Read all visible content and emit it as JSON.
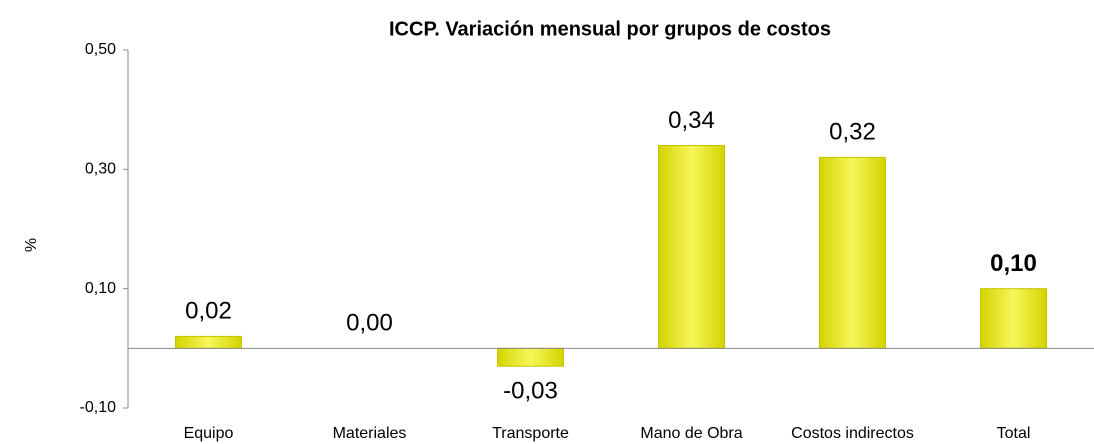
{
  "chart_data": {
    "type": "bar",
    "title": "ICCP. Variación mensual por grupos de costos",
    "y_label": "%",
    "categories": [
      "Equipo",
      "Materiales",
      "Transporte",
      "Mano de Obra",
      "Costos indirectos",
      "Total"
    ],
    "values": [
      0.02,
      0.0,
      -0.03,
      0.34,
      0.32,
      0.1
    ],
    "value_labels": [
      "0,02",
      "0,00",
      "-0,03",
      "0,34",
      "0,32",
      "0,10"
    ],
    "color": "#e8e800",
    "ylim": [
      -0.1,
      0.5
    ],
    "yticks": [
      {
        "value": -0.1,
        "label": "-0,10"
      },
      {
        "value": 0.1,
        "label": "0,10"
      },
      {
        "value": 0.3,
        "label": "0,30"
      },
      {
        "value": 0.5,
        "label": "0,50"
      }
    ]
  }
}
